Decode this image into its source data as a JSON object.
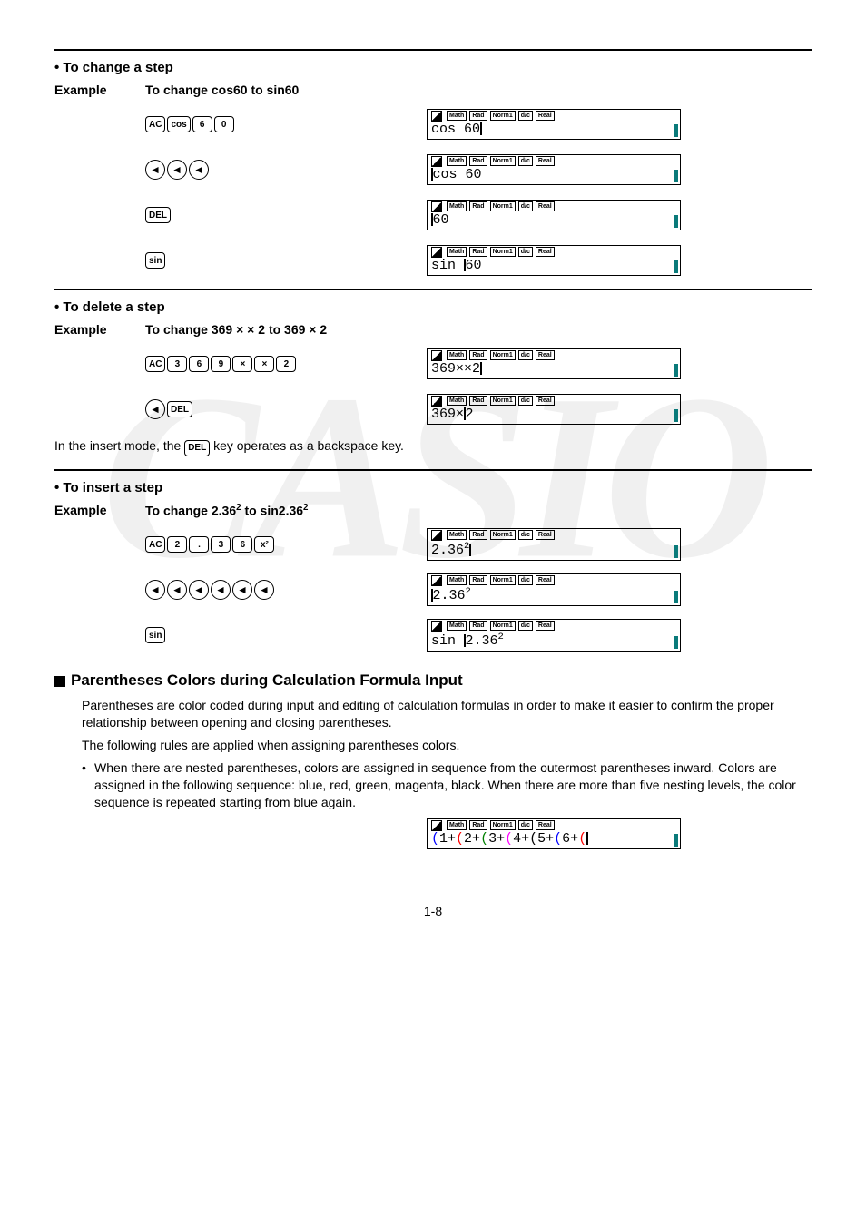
{
  "watermark": "CASIO",
  "status_badges": [
    "Math",
    "Rad",
    "Norm1",
    "d/c",
    "Real"
  ],
  "sections": {
    "change": {
      "heading": "• To change a step",
      "example_label": "Example",
      "example_desc": "To change cos60 to sin60",
      "steps": [
        {
          "keys": [
            "AC",
            "cos",
            "6",
            "0"
          ],
          "screen": "cos 60",
          "cursor_after": true
        },
        {
          "rounds": [
            "◄",
            "◄",
            "◄"
          ],
          "screen": "cos 60",
          "cursor_before": true,
          "prefix_cursor_at": 0
        },
        {
          "keys": [
            "DEL"
          ],
          "screen": "60",
          "cursor_before": true,
          "prefix_cursor_at": 0,
          "char_cursor_after_idx": 0
        },
        {
          "keys": [
            "sin"
          ],
          "screen": "sin 60",
          "cursor_mid": true,
          "mid_idx": 4
        }
      ]
    },
    "delete": {
      "heading": "• To delete a step",
      "example_label": "Example",
      "example_desc_pre": "To change 369 ",
      "example_desc_mid": "×",
      "example_desc_mid2": " × ",
      "example_desc_post": "2 to 369 × 2",
      "steps": [
        {
          "keys": [
            "AC",
            "3",
            "6",
            "9",
            "×",
            "×",
            "2"
          ],
          "screen": "369××2",
          "cursor_after": true
        },
        {
          "mixed": [
            {
              "round": "◄"
            },
            {
              "key": "DEL"
            }
          ],
          "screen": "369×2",
          "cursor_mid": true,
          "mid_idx": 4
        }
      ],
      "note_pre": "In the insert mode, the ",
      "note_key": "DEL",
      "note_post": " key operates as a backspace key."
    },
    "insert": {
      "heading": "• To insert a step",
      "example_label": "Example",
      "example_desc_html": "To change 2.36<sup>2</sup> to sin2.36<sup>2</sup>",
      "steps": [
        {
          "keys": [
            "AC",
            "2",
            ".",
            "3",
            "6",
            "x²"
          ],
          "screen_html": "2.36<sup>2</sup>",
          "cursor_after": true
        },
        {
          "rounds": [
            "◄",
            "◄",
            "◄",
            "◄",
            "◄",
            "◄"
          ],
          "screen_html": "2.36<sup>2</sup>",
          "cursor_before": true
        },
        {
          "keys": [
            "sin"
          ],
          "screen_html": "sin 2.36<sup>2</sup>",
          "cursor_mid": true,
          "mid_idx": 4
        }
      ]
    }
  },
  "paren_section": {
    "heading": "Parentheses Colors during Calculation Formula Input",
    "p1": "Parentheses are color coded during input and editing of calculation formulas in order to make it easier to confirm the proper relationship between opening and closing parentheses.",
    "p2": "The following rules are applied when assigning parentheses colors.",
    "bullet": "When there are nested parentheses, colors are assigned in sequence from the outermost parentheses inward. Colors are assigned in the following sequence: blue, red, green, magenta, black. When there are more than five nesting levels, the color sequence is repeated starting from blue again.",
    "screen_segments": [
      {
        "t": "(",
        "c": "p-blue"
      },
      {
        "t": "1+"
      },
      {
        "t": "(",
        "c": "p-red"
      },
      {
        "t": "2+"
      },
      {
        "t": "(",
        "c": "p-green"
      },
      {
        "t": "3+"
      },
      {
        "t": "(",
        "c": "p-mag"
      },
      {
        "t": "4+"
      },
      {
        "t": "(",
        "c": "p-black"
      },
      {
        "t": "5+"
      },
      {
        "t": "(",
        "c": "p-blue"
      },
      {
        "t": "6+"
      },
      {
        "t": "(",
        "c": "p-red"
      }
    ]
  },
  "page_number": "1-8"
}
